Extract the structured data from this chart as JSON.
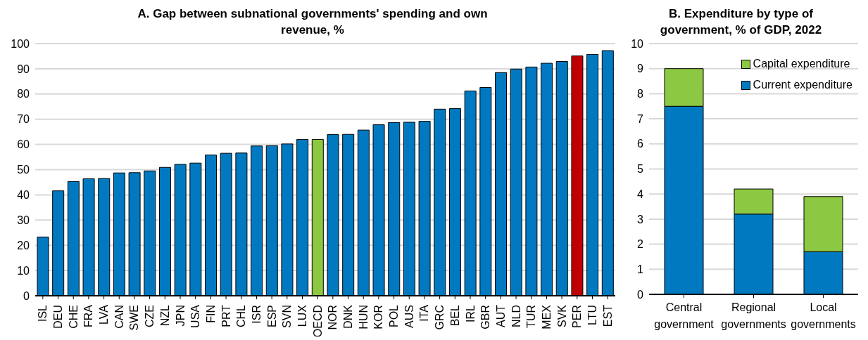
{
  "chart_data": [
    {
      "type": "bar",
      "title": "A. Gap between subnational governments' spending and own revenue, %",
      "categories": [
        "ISL",
        "DEU",
        "CHE",
        "FRA",
        "LVA",
        "CAN",
        "SWE",
        "CZE",
        "NZL",
        "JPN",
        "USA",
        "FIN",
        "PRT",
        "CHL",
        "ISR",
        "ESP",
        "SVN",
        "LUX",
        "OECD",
        "NOR",
        "DNK",
        "HUN",
        "KOR",
        "POL",
        "AUS",
        "ITA",
        "GRC",
        "BEL",
        "IRL",
        "GBR",
        "AUT",
        "NLD",
        "TUR",
        "MEX",
        "SVK",
        "PER",
        "LTU",
        "EST"
      ],
      "values": [
        23.3,
        41.6,
        45.3,
        46.4,
        46.5,
        48.7,
        48.8,
        49.5,
        50.9,
        52.1,
        52.6,
        55.8,
        56.5,
        56.6,
        59.4,
        59.5,
        60.2,
        62.0,
        62.0,
        63.9,
        64.0,
        65.7,
        67.8,
        68.7,
        68.8,
        69.2,
        74.0,
        74.2,
        81.2,
        82.6,
        88.5,
        89.9,
        90.7,
        92.2,
        92.9,
        95.1,
        95.7,
        97.2
      ],
      "colors": [
        "#0079c1",
        "#0079c1",
        "#0079c1",
        "#0079c1",
        "#0079c1",
        "#0079c1",
        "#0079c1",
        "#0079c1",
        "#0079c1",
        "#0079c1",
        "#0079c1",
        "#0079c1",
        "#0079c1",
        "#0079c1",
        "#0079c1",
        "#0079c1",
        "#0079c1",
        "#0079c1",
        "#8cc841",
        "#0079c1",
        "#0079c1",
        "#0079c1",
        "#0079c1",
        "#0079c1",
        "#0079c1",
        "#0079c1",
        "#0079c1",
        "#0079c1",
        "#0079c1",
        "#0079c1",
        "#0079c1",
        "#0079c1",
        "#0079c1",
        "#0079c1",
        "#0079c1",
        "#c00000",
        "#0079c1",
        "#0079c1"
      ],
      "ylim": [
        0,
        100
      ],
      "yticks": [
        0,
        10,
        20,
        30,
        40,
        50,
        60,
        70,
        80,
        90,
        100
      ],
      "grid": "y"
    },
    {
      "type": "bar",
      "title": "B. Expenditure by type of government, % of GDP, 2022",
      "stacked": true,
      "categories": [
        "Central government",
        "Regional governments",
        "Local governments"
      ],
      "series": [
        {
          "name": "Current expenditure",
          "color": "#0079c1",
          "values": [
            7.5,
            3.2,
            1.7
          ]
        },
        {
          "name": "Capital expenditure",
          "color": "#8cc841",
          "values": [
            1.5,
            1.0,
            2.2
          ]
        }
      ],
      "ylim": [
        0,
        10
      ],
      "yticks": [
        0,
        1,
        2,
        3,
        4,
        5,
        6,
        7,
        8,
        9,
        10
      ],
      "grid": "y",
      "legend": "top right"
    }
  ]
}
